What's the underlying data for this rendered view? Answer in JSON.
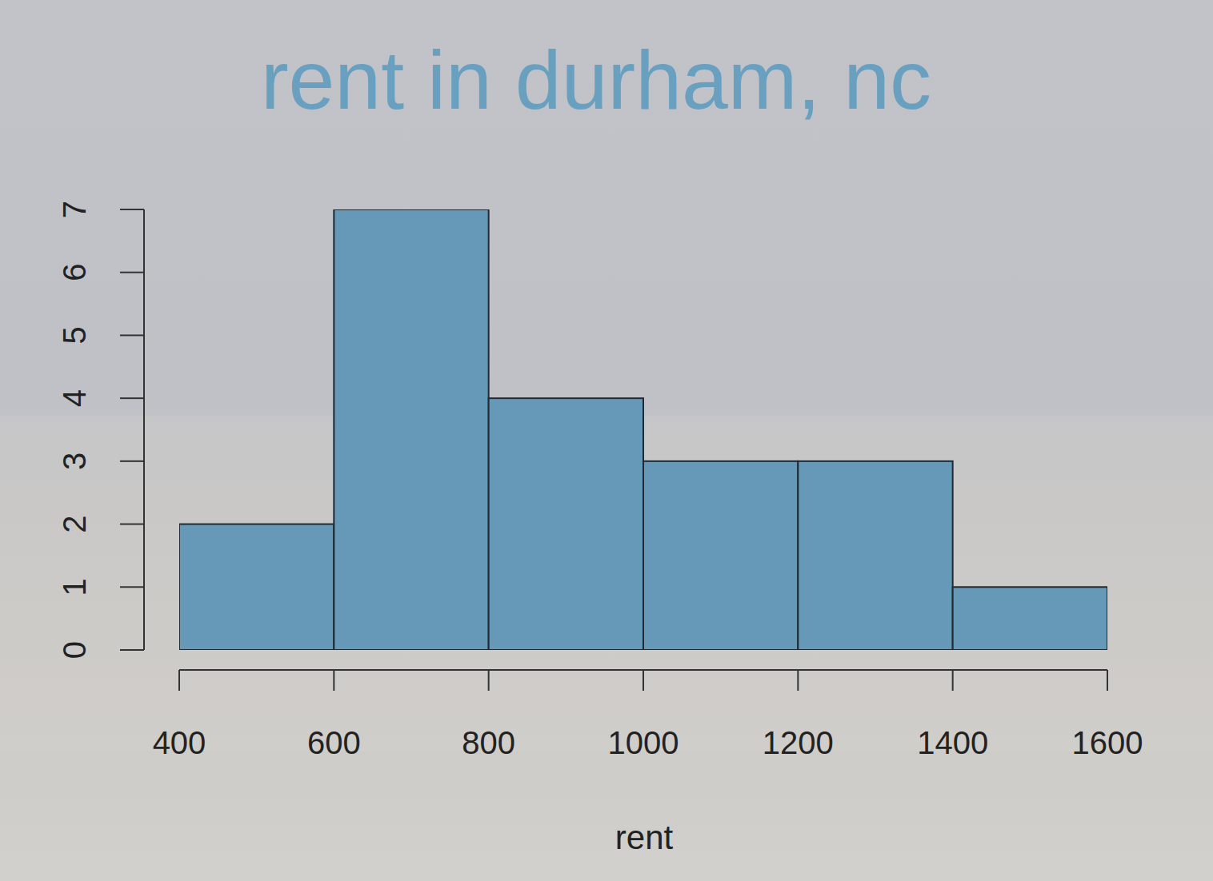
{
  "chart_data": {
    "type": "histogram",
    "title": "rent in durham, nc",
    "x_label": "rent",
    "bins": [
      400,
      600,
      800,
      1000,
      1200,
      1400,
      1600
    ],
    "values": [
      2,
      7,
      4,
      3,
      3,
      1
    ],
    "color": "#6699b8",
    "xlim": [
      400,
      1600
    ],
    "xticks": [
      400,
      600,
      800,
      1000,
      1200,
      1400,
      1600
    ],
    "ylim": [
      0,
      7
    ],
    "yticks": [
      0,
      1,
      2,
      3,
      4,
      5,
      6,
      7
    ],
    "grid": false
  }
}
